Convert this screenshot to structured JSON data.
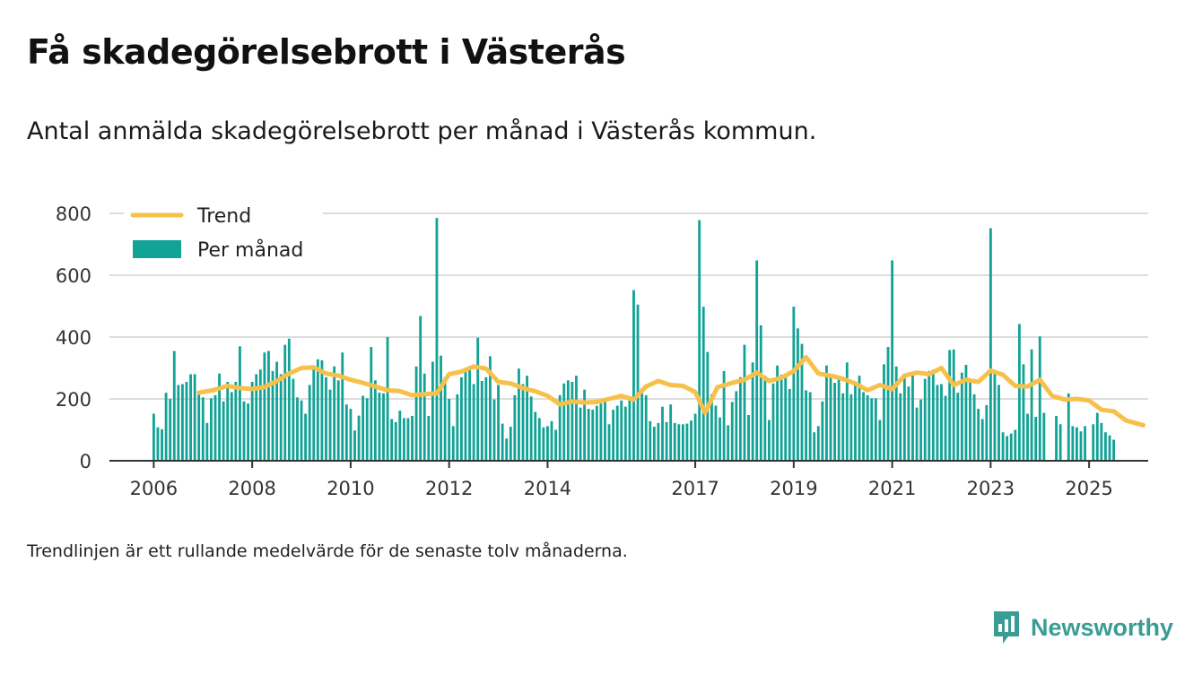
{
  "header": {
    "title": "Få skadegörelsebrott i Västerås",
    "subtitle": "Antal anmälda skadegörelsebrott per månad i Västerås kommun."
  },
  "footer": {
    "note": "Trendlinjen är ett rullande medelvärde för de senaste tolv månaderna.",
    "brand": "Newsworthy"
  },
  "colors": {
    "bar": "#13a396",
    "trend": "#f7c04a",
    "grid": "#dddddd",
    "axis": "#333333",
    "brand": "#3a9d95"
  },
  "chart_data": {
    "type": "bar",
    "xlim": [
      2005.1,
      2026.2
    ],
    "ylim": [
      0,
      800
    ],
    "yticks": [
      0,
      200,
      400,
      600,
      800
    ],
    "xticks": [
      "2006",
      "2008",
      "2010",
      "2012",
      "2014",
      "2017",
      "2019",
      "2021",
      "2023",
      "2025"
    ],
    "xtick_values": [
      2006,
      2008,
      2010,
      2012,
      2014,
      2017,
      2019,
      2021,
      2023,
      2025
    ],
    "grid": true,
    "legend_position": "top-left",
    "series": [
      {
        "name": "Per månad",
        "type": "bar",
        "start": 2006,
        "values": [
          152,
          108,
          102,
          220,
          200,
          355,
          245,
          248,
          255,
          280,
          280,
          220,
          205,
          122,
          202,
          212,
          282,
          192,
          255,
          222,
          255,
          370,
          192,
          185,
          255,
          280,
          295,
          350,
          355,
          290,
          320,
          280,
          375,
          395,
          265,
          205,
          195,
          152,
          245,
          300,
          328,
          325,
          270,
          230,
          305,
          260,
          350,
          182,
          168,
          98,
          146,
          210,
          202,
          368,
          260,
          220,
          218,
          400,
          135,
          125,
          162,
          138,
          138,
          145,
          305,
          468,
          282,
          145,
          320,
          785,
          340,
          270,
          200,
          112,
          215,
          270,
          298,
          300,
          248,
          398,
          258,
          270,
          338,
          198,
          245,
          120,
          72,
          110,
          212,
          298,
          248,
          275,
          208,
          158,
          138,
          108,
          112,
          128,
          100,
          212,
          250,
          260,
          255,
          275,
          172,
          230,
          168,
          165,
          178,
          185,
          200,
          118,
          165,
          178,
          195,
          175,
          195,
          552,
          505,
          235,
          212,
          128,
          110,
          122,
          175,
          125,
          182,
          122,
          118,
          118,
          120,
          130,
          152,
          778,
          498,
          352,
          215,
          178,
          140,
          290,
          115,
          190,
          225,
          270,
          375,
          148,
          318,
          648,
          438,
          275,
          132,
          250,
          308,
          278,
          280,
          232,
          498,
          428,
          378,
          228,
          222,
          92,
          112,
          192,
          308,
          280,
          252,
          275,
          218,
          318,
          215,
          245,
          275,
          222,
          212,
          202,
          202,
          132,
          312,
          368,
          648,
          305,
          218,
          282,
          240,
          280,
          172,
          198,
          265,
          290,
          295,
          245,
          248,
          210,
          358,
          360,
          220,
          285,
          310,
          262,
          215,
          168,
          135,
          180,
          752,
          285,
          245,
          92,
          80,
          88,
          100,
          442,
          312,
          152,
          360,
          142,
          402,
          155,
          0,
          0,
          145,
          118,
          0,
          218,
          112,
          108,
          95,
          112,
          0,
          118,
          155,
          122,
          92,
          82,
          68
        ]
      },
      {
        "name": "Trend",
        "type": "line",
        "points": [
          [
            2006.92,
            220
          ],
          [
            2007.2,
            228
          ],
          [
            2007.5,
            242
          ],
          [
            2007.75,
            235
          ],
          [
            2008.0,
            232
          ],
          [
            2008.25,
            238
          ],
          [
            2008.5,
            258
          ],
          [
            2008.75,
            282
          ],
          [
            2009.0,
            300
          ],
          [
            2009.25,
            302
          ],
          [
            2009.5,
            282
          ],
          [
            2009.75,
            275
          ],
          [
            2010.0,
            262
          ],
          [
            2010.25,
            252
          ],
          [
            2010.5,
            240
          ],
          [
            2010.75,
            228
          ],
          [
            2011.0,
            225
          ],
          [
            2011.25,
            212
          ],
          [
            2011.5,
            215
          ],
          [
            2011.75,
            218
          ],
          [
            2012.0,
            280
          ],
          [
            2012.25,
            288
          ],
          [
            2012.5,
            305
          ],
          [
            2012.75,
            298
          ],
          [
            2013.0,
            255
          ],
          [
            2013.25,
            250
          ],
          [
            2013.5,
            235
          ],
          [
            2013.75,
            225
          ],
          [
            2014.0,
            210
          ],
          [
            2014.25,
            182
          ],
          [
            2014.5,
            192
          ],
          [
            2014.75,
            188
          ],
          [
            2015.0,
            190
          ],
          [
            2015.25,
            200
          ],
          [
            2015.5,
            210
          ],
          [
            2015.75,
            198
          ],
          [
            2016.0,
            240
          ],
          [
            2016.25,
            258
          ],
          [
            2016.5,
            245
          ],
          [
            2016.75,
            242
          ],
          [
            2017.0,
            222
          ],
          [
            2017.2,
            155
          ],
          [
            2017.45,
            238
          ],
          [
            2017.75,
            252
          ],
          [
            2018.0,
            262
          ],
          [
            2018.25,
            285
          ],
          [
            2018.5,
            258
          ],
          [
            2018.75,
            268
          ],
          [
            2019.0,
            290
          ],
          [
            2019.25,
            335
          ],
          [
            2019.5,
            282
          ],
          [
            2019.75,
            275
          ],
          [
            2020.0,
            265
          ],
          [
            2020.25,
            250
          ],
          [
            2020.5,
            228
          ],
          [
            2020.75,
            245
          ],
          [
            2021.0,
            232
          ],
          [
            2021.25,
            275
          ],
          [
            2021.5,
            285
          ],
          [
            2021.75,
            280
          ],
          [
            2022.0,
            300
          ],
          [
            2022.25,
            245
          ],
          [
            2022.5,
            262
          ],
          [
            2022.75,
            255
          ],
          [
            2023.0,
            292
          ],
          [
            2023.25,
            278
          ],
          [
            2023.5,
            242
          ],
          [
            2023.75,
            240
          ],
          [
            2024.0,
            262
          ],
          [
            2024.25,
            210
          ],
          [
            2024.5,
            198
          ],
          [
            2024.75,
            200
          ],
          [
            2025.0,
            195
          ],
          [
            2025.25,
            165
          ],
          [
            2025.5,
            160
          ],
          [
            2025.75,
            130
          ],
          [
            2026.1,
            115
          ]
        ]
      }
    ]
  }
}
